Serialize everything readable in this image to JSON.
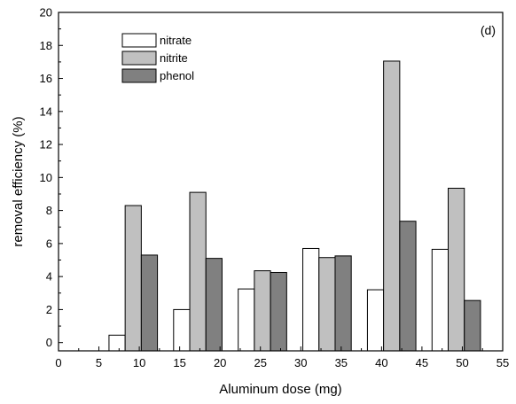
{
  "chart_data": {
    "type": "bar",
    "title": "",
    "panel_label": "(d)",
    "xlabel": "Aluminum dose (mg)",
    "ylabel": "removal efficiency (%)",
    "xlim": [
      0,
      55
    ],
    "ylim": [
      -0.5,
      20
    ],
    "x_ticks": [
      "0",
      "5",
      "10",
      "15",
      "20",
      "25",
      "30",
      "35",
      "40",
      "45",
      "50",
      "55"
    ],
    "y_ticks": [
      "0",
      "2",
      "4",
      "6",
      "8",
      "10",
      "12",
      "14",
      "16",
      "18",
      "20"
    ],
    "categories": [
      "10",
      "15",
      "25",
      "30",
      "40",
      "50"
    ],
    "legend_position": "top-center",
    "grid": false,
    "series": [
      {
        "name": "nitrate",
        "color": "#ffffff",
        "x": [
          6.25,
          14.25,
          22.25,
          30.25,
          38.25,
          46.25
        ],
        "values": [
          0.45,
          2.0,
          3.25,
          5.7,
          3.2,
          5.65
        ]
      },
      {
        "name": "nitrite",
        "color": "#c0c0c0",
        "x": [
          8.25,
          16.25,
          24.25,
          32.25,
          40.25,
          48.25
        ],
        "values": [
          8.3,
          9.1,
          4.35,
          5.15,
          17.05,
          9.35
        ]
      },
      {
        "name": "phenol",
        "color": "#808080",
        "x": [
          10.25,
          18.25,
          26.25,
          34.25,
          42.25,
          50.25
        ],
        "values": [
          5.3,
          5.1,
          4.25,
          5.25,
          7.35,
          2.55
        ]
      }
    ]
  }
}
